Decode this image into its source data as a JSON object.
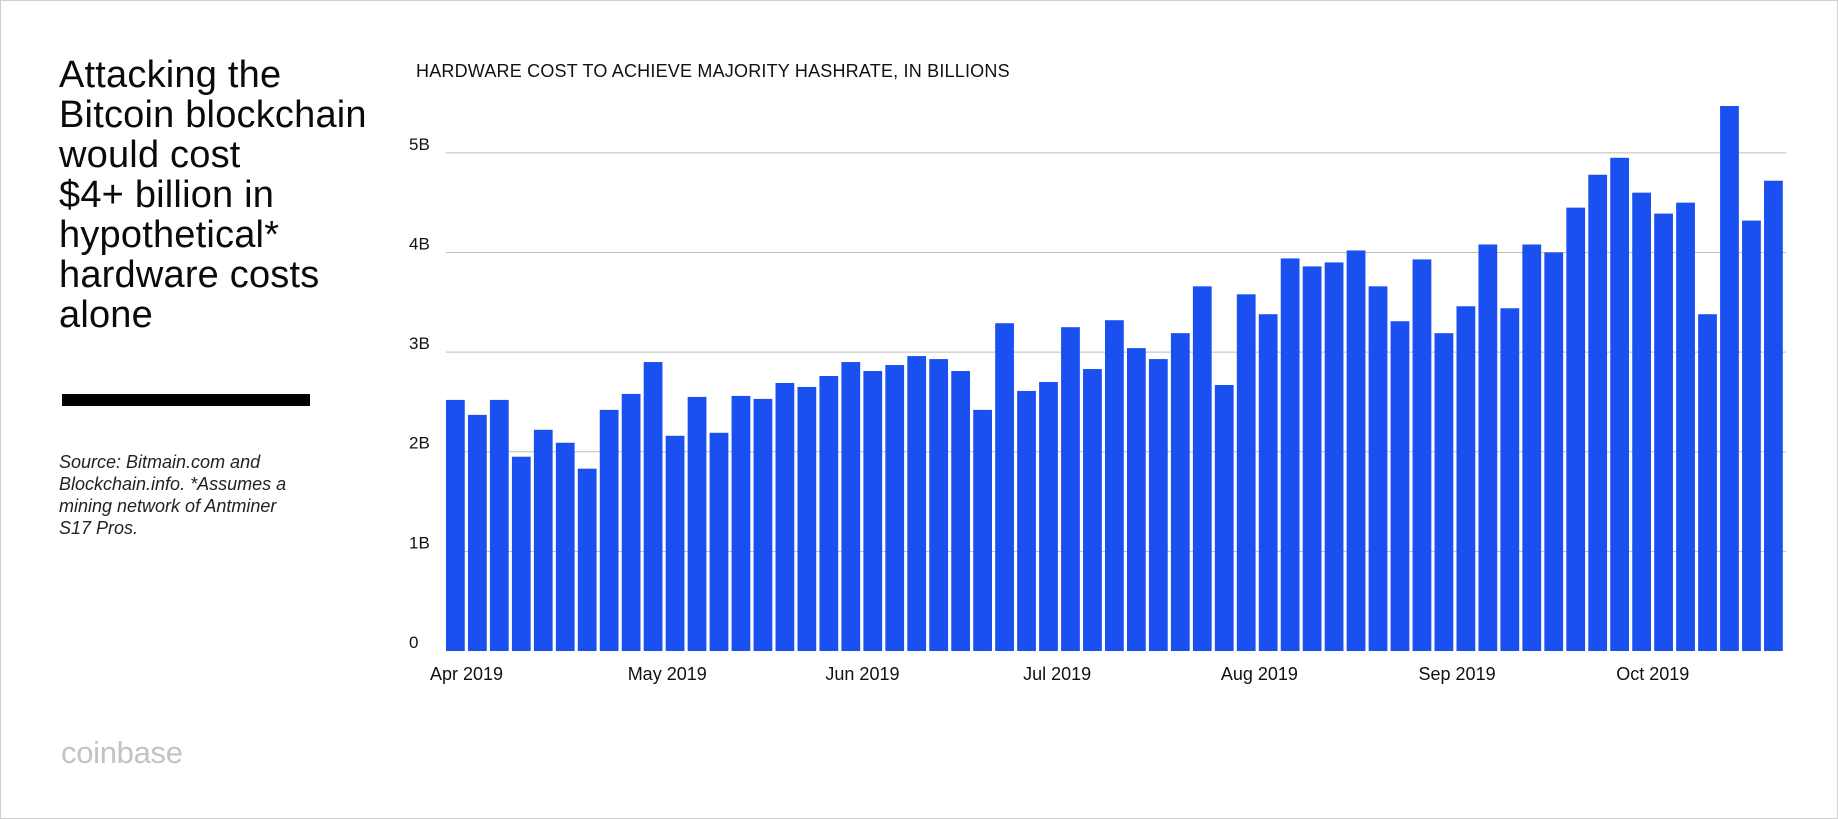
{
  "headline": "Attacking the Bitcoin blockchain would cost $4+ billion in hypothetical* hardware costs alone",
  "headline_lines": [
    "Attacking the",
    "Bitcoin blockchain",
    "would cost",
    "$4+ billion in",
    "hypothetical*",
    "hardware costs",
    "alone"
  ],
  "source_note": "Source: Bitmain.com and Blockchain.info. *Assumes a mining network of Antminer S17 Pros.",
  "brand": "coinbase",
  "colors": {
    "bar": "#1a4ff0",
    "gridline": "#bdbdbd",
    "text": "#111111",
    "brand": "#c3c3c3"
  },
  "chart_data": {
    "type": "bar",
    "title": "HARDWARE COST TO ACHIEVE MAJORITY HASHRATE, IN BILLIONS",
    "xlabel": "",
    "ylabel": "",
    "unit": "billions of USD",
    "ylim": [
      0,
      5.5
    ],
    "y_ticks": [
      0,
      1,
      2,
      3,
      4,
      5
    ],
    "y_tick_labels": [
      "0",
      "1B",
      "2B",
      "3B",
      "4B",
      "5B"
    ],
    "x_tick_labels": [
      "Apr 2019",
      "May 2019",
      "Jun 2019",
      "Jul 2019",
      "Aug 2019",
      "Sep 2019",
      "Oct 2019"
    ],
    "x_tick_bar_index": [
      0,
      9,
      18,
      27,
      36,
      45,
      54
    ],
    "grid": true,
    "values": [
      2.52,
      2.37,
      2.52,
      1.95,
      2.22,
      2.09,
      1.83,
      2.42,
      2.58,
      2.9,
      2.16,
      2.55,
      2.19,
      2.56,
      2.53,
      2.69,
      2.65,
      2.76,
      2.9,
      2.81,
      2.87,
      2.96,
      2.93,
      2.81,
      2.42,
      3.29,
      2.61,
      2.7,
      3.25,
      2.83,
      3.32,
      3.04,
      2.93,
      3.19,
      3.66,
      2.67,
      3.58,
      3.38,
      3.94,
      3.86,
      3.9,
      4.02,
      3.66,
      3.31,
      3.93,
      3.19,
      3.46,
      4.08,
      3.44,
      4.08,
      4.0,
      4.45,
      4.78,
      4.95,
      4.6,
      4.39,
      4.5,
      3.38,
      5.47,
      4.32,
      4.72
    ]
  }
}
